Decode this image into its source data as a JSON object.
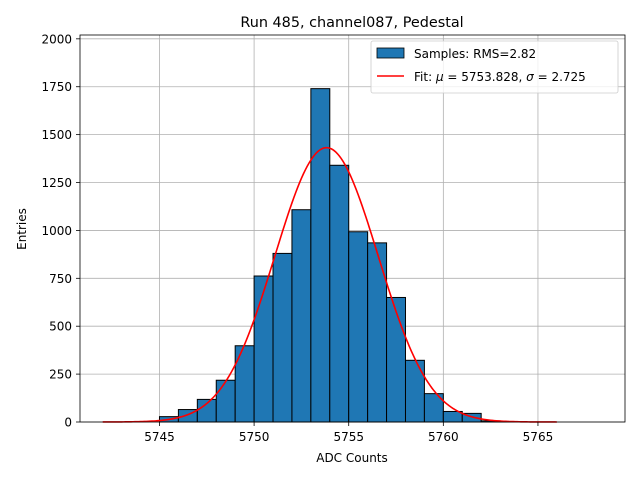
{
  "chart_data": {
    "type": "histogram",
    "title": "Run 485, channel087, Pedestal",
    "xlabel": "ADC Counts",
    "ylabel": "Entries",
    "xlim": [
      5740.8,
      5769.6
    ],
    "ylim": [
      0,
      2020
    ],
    "xticks": [
      5745,
      5750,
      5755,
      5760,
      5765
    ],
    "yticks": [
      0,
      250,
      500,
      750,
      1000,
      1250,
      1500,
      1750,
      2000
    ],
    "grid": true,
    "bin_width": 1,
    "bins": [
      {
        "x0": 5745,
        "count": 28
      },
      {
        "x0": 5746,
        "count": 65
      },
      {
        "x0": 5747,
        "count": 118
      },
      {
        "x0": 5748,
        "count": 218
      },
      {
        "x0": 5749,
        "count": 398
      },
      {
        "x0": 5750,
        "count": 762
      },
      {
        "x0": 5751,
        "count": 880
      },
      {
        "x0": 5752,
        "count": 1108
      },
      {
        "x0": 5753,
        "count": 1740
      },
      {
        "x0": 5754,
        "count": 1340
      },
      {
        "x0": 5755,
        "count": 993
      },
      {
        "x0": 5756,
        "count": 935
      },
      {
        "x0": 5757,
        "count": 650
      },
      {
        "x0": 5758,
        "count": 322
      },
      {
        "x0": 5759,
        "count": 148
      },
      {
        "x0": 5760,
        "count": 55
      },
      {
        "x0": 5761,
        "count": 45
      },
      {
        "x0": 5762,
        "count": 6
      },
      {
        "x0": 5763,
        "count": 2
      }
    ],
    "fit": {
      "mu": 5753.828,
      "sigma": 2.725,
      "amplitude": 1432,
      "x_range": [
        5742,
        5766
      ]
    },
    "legend": {
      "position": "top-right",
      "histogram_label": "Samples: RMS=2.82",
      "fit_prefix": "Fit: ",
      "fit_mu_symbol": "μ",
      "fit_mu_text": " = 5753.828, ",
      "fit_sigma_symbol": "σ",
      "fit_sigma_text": " = 2.725"
    },
    "colors": {
      "bar": "#1f77b4",
      "edge": "#000000",
      "fit": "#ff0000",
      "grid": "#b0b0b0"
    }
  }
}
